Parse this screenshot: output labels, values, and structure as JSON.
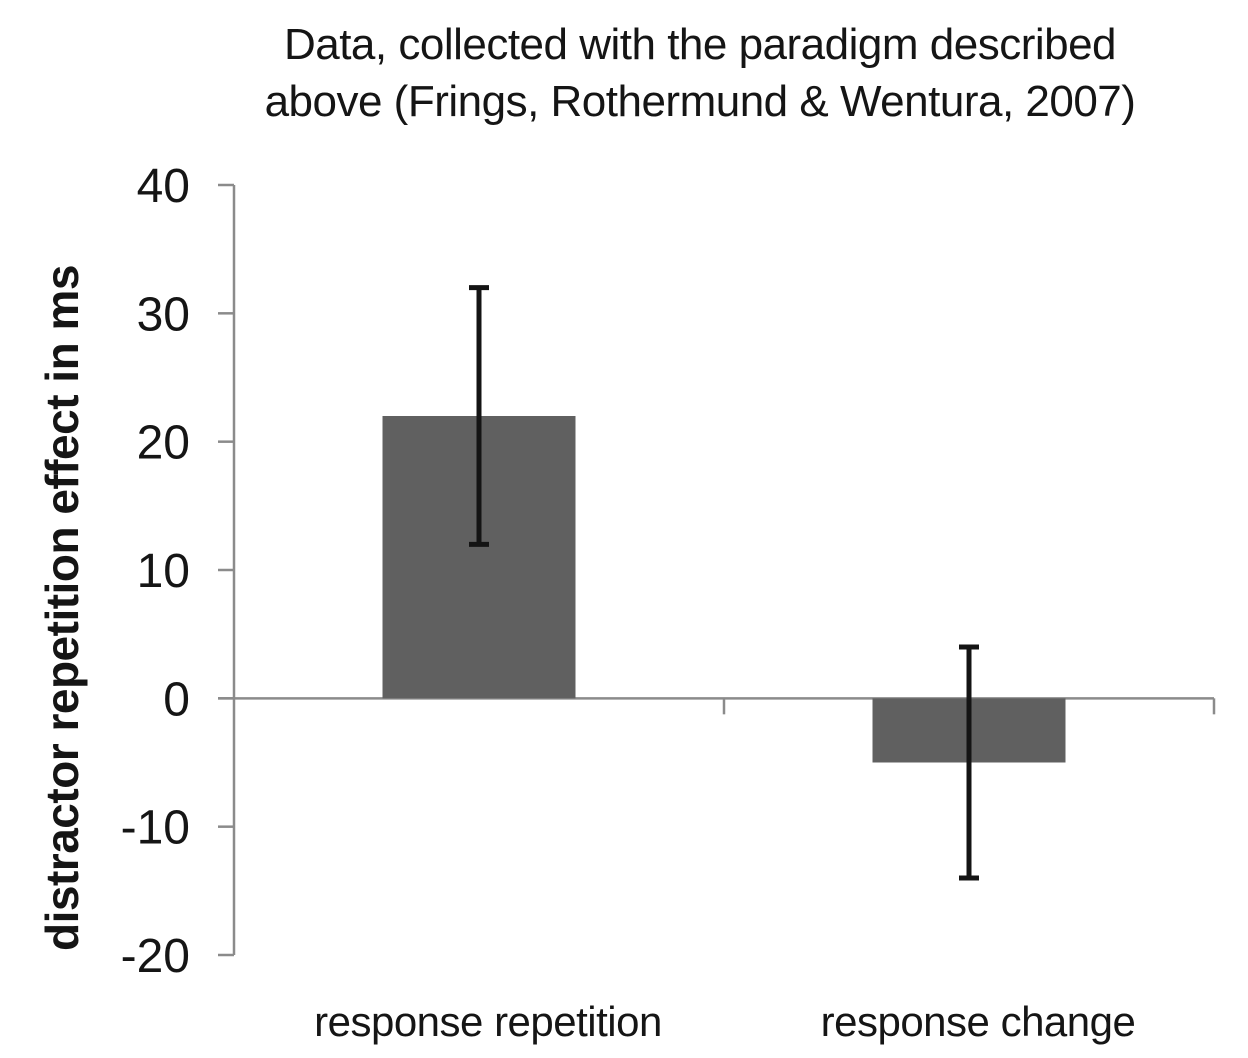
{
  "figure": {
    "title_lines": [
      "Data, collected with the paradigm described",
      "above (Frings, Rothermund & Wentura, 2007)"
    ]
  },
  "chart_data": {
    "type": "bar",
    "title": "Data, collected with the paradigm described above (Frings, Rothermund & Wentura, 2007)",
    "ylabel": "distractor repetition effect in ms",
    "xlabel": "",
    "categories": [
      "response repetition",
      "response change"
    ],
    "values": [
      22,
      -5
    ],
    "error_bars": [
      {
        "low": 12,
        "high": 32
      },
      {
        "low": -14,
        "high": 4
      }
    ],
    "ylim": [
      -20,
      40
    ],
    "yticks": [
      40,
      30,
      20,
      10,
      0,
      -10,
      -20
    ],
    "grid": false,
    "legend": null,
    "colors": {
      "bar_fill": "#606060",
      "axis_line": "#8b8b8b",
      "error_bar": "#141414",
      "text": "#151515"
    }
  }
}
